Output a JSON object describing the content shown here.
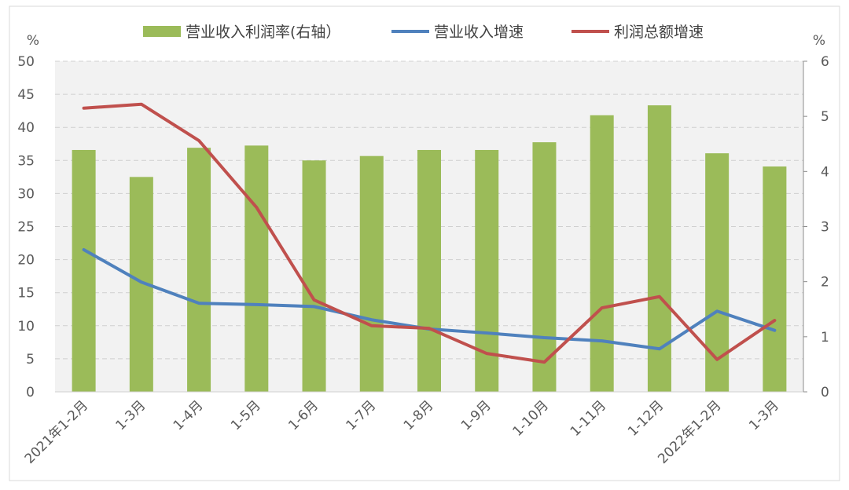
{
  "chart_data": {
    "type": "bar+line",
    "categories": [
      "2021年1-2月",
      "1-3月",
      "1-4月",
      "1-5月",
      "1-6月",
      "1-7月",
      "1-8月",
      "1-9月",
      "1-10月",
      "1-11月",
      "1-12月",
      "2022年1-2月",
      "1-3月"
    ],
    "series": [
      {
        "name": "营业收入利润率(右轴）",
        "type": "bar",
        "axis": "right",
        "color": "#9bbb59",
        "values": [
          4.39,
          3.9,
          4.43,
          4.47,
          4.2,
          4.28,
          4.39,
          4.39,
          4.53,
          5.02,
          5.2,
          4.33,
          4.09
        ]
      },
      {
        "name": "营业收入增速",
        "type": "line",
        "axis": "left",
        "color": "#4f81bd",
        "values": [
          21.5,
          16.6,
          13.4,
          13.2,
          12.9,
          10.9,
          9.5,
          8.9,
          8.2,
          7.7,
          6.5,
          12.2,
          9.3
        ]
      },
      {
        "name": "利润总额增速",
        "type": "line",
        "axis": "left",
        "color": "#c0504d",
        "values": [
          42.9,
          43.5,
          38.0,
          27.9,
          13.9,
          10.0,
          9.6,
          5.8,
          4.5,
          12.7,
          14.4,
          4.9,
          10.8
        ]
      }
    ],
    "left_axis": {
      "label": "%",
      "range": [
        0,
        50
      ],
      "ticks": [
        0,
        5,
        10,
        15,
        20,
        25,
        30,
        35,
        40,
        45,
        50
      ]
    },
    "right_axis": {
      "label": "%",
      "range": [
        0,
        6
      ],
      "ticks": [
        0,
        1,
        2,
        3,
        4,
        5,
        6
      ]
    },
    "grid": true,
    "legend": "top"
  }
}
